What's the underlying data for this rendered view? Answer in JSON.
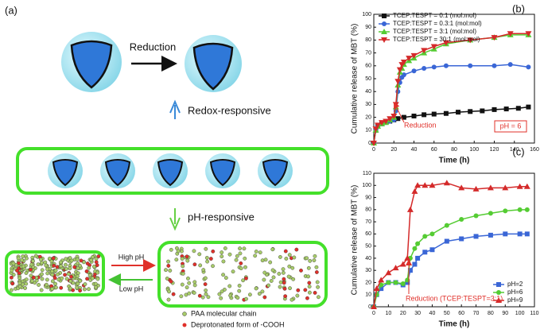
{
  "panel_a": {
    "label": "(a)",
    "reduction": "Reduction",
    "redox": "Redox-responsive",
    "ph": "pH-responsive",
    "high_ph": "High pH",
    "low_ph": "Low pH",
    "legend_chain": "PAA molecular chain",
    "legend_cooh": "Deprotonated form of -COOH"
  },
  "chart_data": [
    {
      "type": "line",
      "panel_label": "(b)",
      "x_label": "Time (h)",
      "y_label": "Cumulative release of MBT (%)",
      "xlim": [
        0,
        160
      ],
      "xticks": [
        0,
        20,
        40,
        60,
        80,
        100,
        120,
        140,
        160
      ],
      "ylim": [
        0,
        100
      ],
      "yticks": [
        0,
        10,
        20,
        30,
        40,
        50,
        60,
        70,
        80,
        90,
        100
      ],
      "legend": "top-left",
      "annotations": [
        "Reduction",
        "pH = 6"
      ],
      "series": [
        {
          "name": "TCEP:TESPT = 0:1 (mol:mol)",
          "color": "#111111",
          "marker": "square",
          "x": [
            0,
            2,
            4,
            8,
            12,
            16,
            20,
            24,
            30,
            40,
            50,
            60,
            72,
            84,
            96,
            108,
            120,
            132,
            144,
            154
          ],
          "values": [
            0,
            10,
            13,
            15,
            16,
            17,
            18,
            19,
            20,
            21,
            22,
            22.5,
            23,
            24,
            24.5,
            25,
            26,
            26.5,
            27,
            28
          ]
        },
        {
          "name": "TCEP:TESPT = 0.3:1 (mol:mol)",
          "color": "#3a66d6",
          "marker": "circle",
          "x": [
            0,
            2,
            4,
            8,
            12,
            16,
            20,
            22,
            24,
            26,
            28,
            30,
            40,
            50,
            60,
            72,
            96,
            120,
            136,
            154
          ],
          "values": [
            0,
            10,
            13,
            15,
            16,
            17,
            18,
            25,
            40,
            47,
            51,
            53,
            56,
            58,
            59,
            60,
            60,
            60,
            61,
            59
          ]
        },
        {
          "name": "TCEP:TESPT = 3:1 (mol:mol)",
          "color": "#55cc33",
          "marker": "triangle-up",
          "x": [
            0,
            2,
            4,
            8,
            12,
            16,
            20,
            22,
            24,
            26,
            28,
            30,
            35,
            40,
            50,
            60,
            72,
            96,
            120,
            136,
            154
          ],
          "values": [
            0,
            10,
            13,
            15,
            16,
            18,
            20,
            28,
            45,
            55,
            58,
            61,
            64,
            66,
            70,
            73,
            77,
            80,
            82,
            84,
            84
          ]
        },
        {
          "name": "TCEP:TESPT = 30:1 (mol:mol)",
          "color": "#d42a2a",
          "marker": "triangle-down",
          "x": [
            0,
            2,
            4,
            8,
            12,
            16,
            20,
            22,
            24,
            26,
            28,
            30,
            35,
            40,
            50,
            60,
            72,
            96,
            120,
            136,
            154
          ],
          "values": [
            0,
            11,
            14,
            16,
            17,
            19,
            21,
            30,
            48,
            57,
            61,
            63,
            66,
            68,
            72,
            75,
            78,
            80,
            82,
            85,
            85
          ]
        }
      ]
    },
    {
      "type": "line",
      "panel_label": "(c)",
      "x_label": "Time (h)",
      "y_label": "Cumulative release of MBT (%)",
      "xlim": [
        0,
        110
      ],
      "xticks": [
        0,
        10,
        20,
        30,
        40,
        50,
        60,
        70,
        80,
        90,
        100,
        110
      ],
      "ylim": [
        0,
        110
      ],
      "yticks": [
        0,
        10,
        20,
        30,
        40,
        50,
        60,
        70,
        80,
        90,
        100,
        110
      ],
      "legend": "bottom-right",
      "annotations": [
        "Reduction (TCEP:TESPT=3:1)"
      ],
      "series": [
        {
          "name": "pH=2",
          "color": "#3a66d6",
          "marker": "square",
          "x": [
            0,
            2,
            5,
            10,
            15,
            20,
            23,
            25,
            28,
            30,
            35,
            40,
            50,
            60,
            70,
            80,
            90,
            100,
            105
          ],
          "values": [
            0,
            10,
            15,
            20,
            20,
            18,
            20,
            30,
            35,
            40,
            45,
            47,
            54,
            56,
            58,
            59,
            60,
            60,
            60
          ]
        },
        {
          "name": "pH=6",
          "color": "#55cc33",
          "marker": "circle",
          "x": [
            0,
            2,
            5,
            10,
            15,
            20,
            23,
            25,
            28,
            30,
            35,
            40,
            50,
            60,
            70,
            80,
            90,
            100,
            105
          ],
          "values": [
            0,
            10,
            18,
            20,
            20,
            19,
            22,
            40,
            48,
            52,
            58,
            60,
            67,
            72,
            75,
            77,
            79,
            80,
            80
          ]
        },
        {
          "name": "pH=9",
          "color": "#d42a2a",
          "marker": "triangle-up",
          "x": [
            0,
            2,
            5,
            10,
            15,
            20,
            23,
            25,
            28,
            30,
            35,
            40,
            50,
            60,
            70,
            80,
            90,
            100,
            105
          ],
          "values": [
            0,
            15,
            22,
            28,
            32,
            35,
            40,
            80,
            95,
            100,
            100,
            100,
            102,
            98,
            97,
            98,
            98,
            99,
            99
          ]
        }
      ]
    }
  ]
}
